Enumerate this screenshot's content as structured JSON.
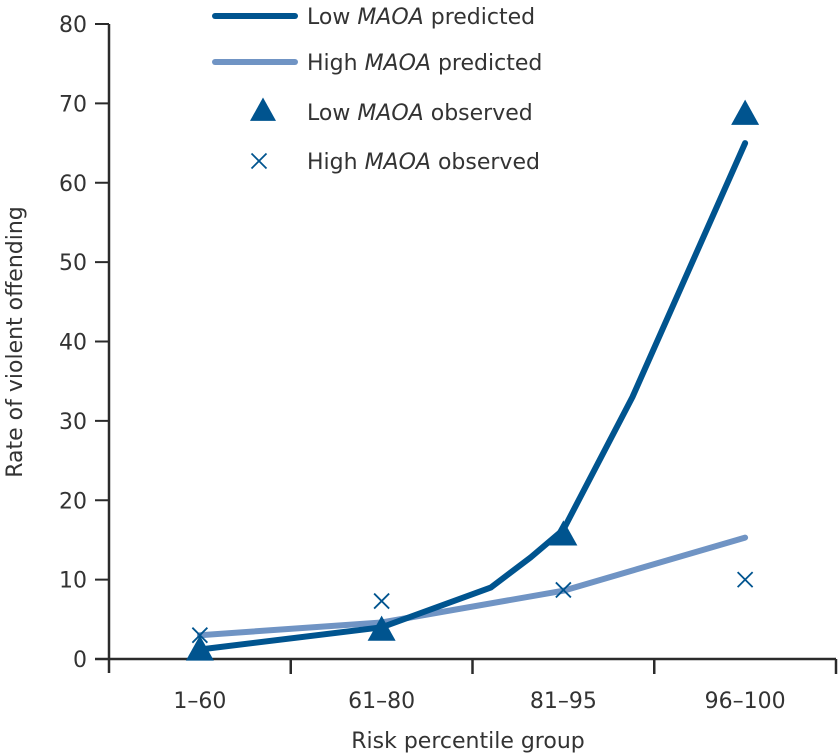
{
  "chart_data": {
    "type": "line",
    "title": "",
    "xlabel": "Risk percentile group",
    "ylabel": "Rate of violent offending",
    "categories": [
      "1–60",
      "61–80",
      "81–95",
      "96–100"
    ],
    "ylim": [
      0,
      80
    ],
    "yticks": [
      0,
      10,
      20,
      30,
      40,
      50,
      60,
      70,
      80
    ],
    "grid": false,
    "legend_position": "top-center",
    "colors": {
      "low_maoa": "#00548f",
      "high_maoa": "#7094c4",
      "axis": "#2b2b2b",
      "text": "#333333"
    },
    "series": [
      {
        "name": "Low MAOA predicted",
        "legend_parts": [
          "Low ",
          "MAOA",
          " predicted"
        ],
        "kind": "line",
        "color_key": "low_maoa",
        "points": [
          [
            0,
            1.2
          ],
          [
            1,
            4.0
          ],
          [
            1.6,
            9.0
          ],
          [
            1.82,
            12.8
          ],
          [
            2,
            16.3
          ],
          [
            2.38,
            33.0
          ],
          [
            3,
            65.0
          ]
        ]
      },
      {
        "name": "High MAOA predicted",
        "legend_parts": [
          "High ",
          "MAOA",
          " predicted"
        ],
        "kind": "line",
        "color_key": "high_maoa",
        "points": [
          [
            0,
            3.0
          ],
          [
            1,
            4.6
          ],
          [
            2,
            8.6
          ],
          [
            3,
            15.3
          ]
        ]
      },
      {
        "name": "Low MAOA observed",
        "legend_parts": [
          "Low ",
          "MAOA",
          " observed"
        ],
        "kind": "triangle",
        "color_key": "low_maoa",
        "values": [
          1.0,
          3.5,
          15.5,
          68.5
        ]
      },
      {
        "name": "High MAOA observed",
        "legend_parts": [
          "High ",
          "MAOA",
          " observed"
        ],
        "kind": "cross",
        "color_key": "low_maoa",
        "values": [
          3.0,
          7.3,
          8.7,
          10.0
        ]
      }
    ]
  }
}
